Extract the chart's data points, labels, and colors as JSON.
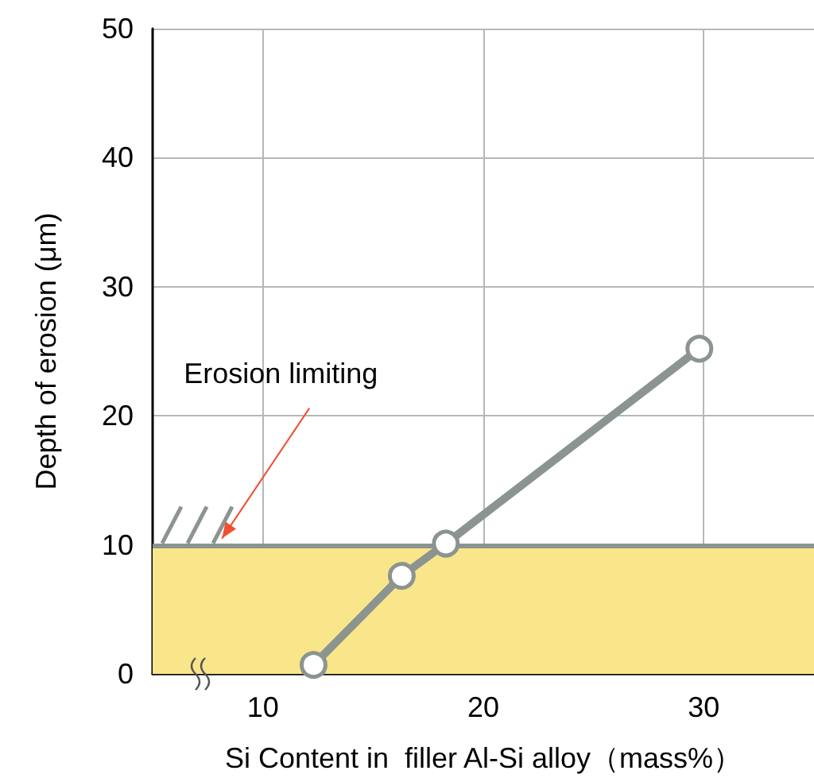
{
  "chart_data": {
    "type": "line",
    "xlabel": "Si Content in  filler Al-Si alloy（mass%）",
    "ylabel": "Depth of erosion (μm)",
    "x": [
      12.3,
      16.3,
      18.3,
      29.8
    ],
    "series": [
      {
        "color": "#8c9490",
        "values": [
          0.7,
          7.6,
          10.1,
          25.2
        ]
      }
    ],
    "xlim": [
      5,
      35
    ],
    "xticks": [
      10,
      20,
      30
    ],
    "ylim": [
      0,
      50
    ],
    "yticks": [
      0,
      10,
      20,
      30,
      40,
      50
    ],
    "grid": true,
    "marker": "circle",
    "line_style": "solid",
    "ref_lines": [
      {
        "axis": "y",
        "value": 10,
        "color": "#8c9490"
      }
    ],
    "bands": [
      {
        "axis": "y",
        "from": 0,
        "to": 10,
        "color": "#f9e68a"
      }
    ],
    "annotations": [
      {
        "text": "Erosion limiting",
        "x": 8,
        "y": 10
      }
    ]
  }
}
